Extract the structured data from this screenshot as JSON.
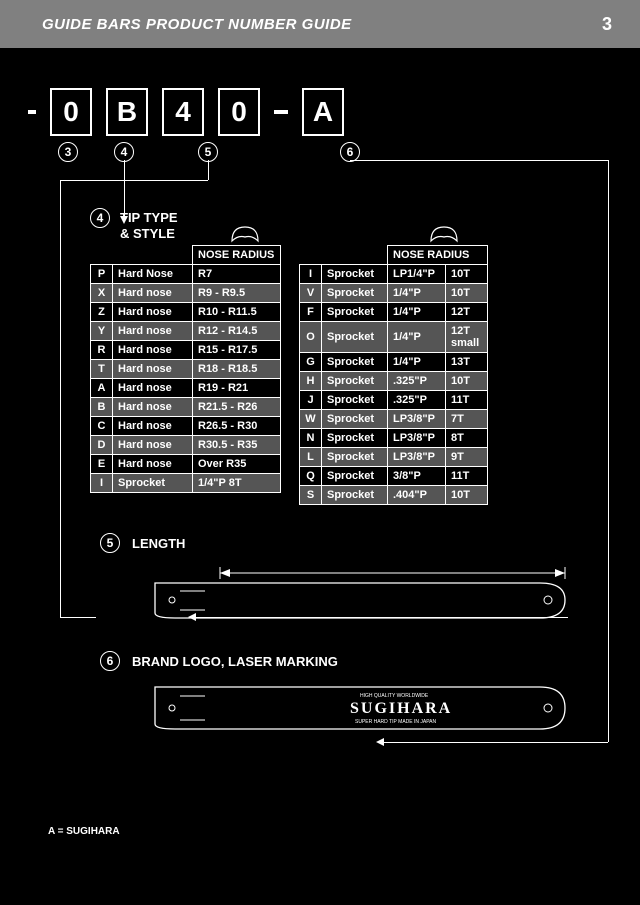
{
  "header": {
    "title": "GUIDE BARS PRODUCT NUMBER GUIDE",
    "page": "3"
  },
  "code": {
    "c1": "0",
    "c2": "B",
    "c3": "4",
    "c4": "0",
    "c5": "A"
  },
  "ref": {
    "r3": "3",
    "r4": "4",
    "r5": "5",
    "r6": "6"
  },
  "section4": {
    "label": "4",
    "title1": "TIP TYPE",
    "title2": "& STYLE",
    "noseHeader": "NOSE RADIUS",
    "left": [
      {
        "c": "P",
        "t": "Hard Nose",
        "n": "R7",
        "shade": false
      },
      {
        "c": "X",
        "t": "Hard nose",
        "n": "R9 - R9.5",
        "shade": true
      },
      {
        "c": "Z",
        "t": "Hard nose",
        "n": "R10 - R11.5",
        "shade": false
      },
      {
        "c": "Y",
        "t": "Hard nose",
        "n": "R12 - R14.5",
        "shade": true
      },
      {
        "c": "R",
        "t": "Hard nose",
        "n": "R15 - R17.5",
        "shade": false
      },
      {
        "c": "T",
        "t": "Hard nose",
        "n": "R18 - R18.5",
        "shade": true
      },
      {
        "c": "A",
        "t": "Hard nose",
        "n": "R19 - R21",
        "shade": false
      },
      {
        "c": "B",
        "t": "Hard nose",
        "n": "R21.5 - R26",
        "shade": true
      },
      {
        "c": "C",
        "t": "Hard nose",
        "n": "R26.5 - R30",
        "shade": false
      },
      {
        "c": "D",
        "t": "Hard nose",
        "n": "R30.5 - R35",
        "shade": true
      },
      {
        "c": "E",
        "t": "Hard nose",
        "n": "Over R35",
        "shade": false
      },
      {
        "c": "I",
        "t": "Sprocket",
        "n": "1/4\"P    8T",
        "shade": true
      }
    ],
    "right": [
      {
        "c": "I",
        "t": "Sprocket",
        "p": "LP1/4\"P",
        "q": "10T",
        "shade": false
      },
      {
        "c": "V",
        "t": "Sprocket",
        "p": "1/4\"P",
        "q": "10T",
        "shade": true
      },
      {
        "c": "F",
        "t": "Sprocket",
        "p": "1/4\"P",
        "q": "12T",
        "shade": false
      },
      {
        "c": "O",
        "t": "Sprocket",
        "p": "1/4\"P",
        "q": "12T small",
        "shade": true
      },
      {
        "c": "G",
        "t": "Sprocket",
        "p": "1/4\"P",
        "q": "13T",
        "shade": false
      },
      {
        "c": "H",
        "t": "Sprocket",
        "p": ".325\"P",
        "q": "10T",
        "shade": true
      },
      {
        "c": "J",
        "t": "Sprocket",
        "p": ".325\"P",
        "q": "11T",
        "shade": false
      },
      {
        "c": "W",
        "t": "Sprocket",
        "p": "LP3/8\"P",
        "q": "7T",
        "shade": true
      },
      {
        "c": "N",
        "t": "Sprocket",
        "p": "LP3/8\"P",
        "q": "8T",
        "shade": false
      },
      {
        "c": "L",
        "t": "Sprocket",
        "p": "LP3/8\"P",
        "q": "9T",
        "shade": true
      },
      {
        "c": "Q",
        "t": "Sprocket",
        "p": "3/8\"P",
        "q": "11T",
        "shade": false
      },
      {
        "c": "S",
        "t": "Sprocket",
        "p": ".404\"P",
        "q": "10T",
        "shade": true
      }
    ]
  },
  "section5": {
    "label": "5",
    "title": "LENGTH"
  },
  "section6": {
    "label": "6",
    "title": "BRAND LOGO, LASER MARKING",
    "note": "A = SUGIHARA",
    "brand": "SUGIHARA"
  },
  "colors": {
    "bg": "#000000",
    "fg": "#ffffff",
    "headerBg": "#808080",
    "shade": "#555555"
  }
}
